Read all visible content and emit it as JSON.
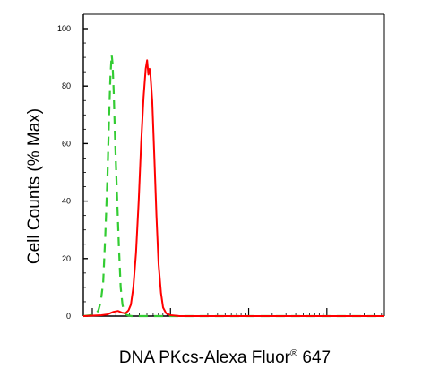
{
  "chart_data": {
    "type": "line",
    "title": "",
    "xlabel": "DNA PKcs-Alexa Fluor",
    "xlabel_superscript": "®",
    "xlabel_suffix": " 647",
    "ylabel": "Cell Counts (% Max)",
    "xscale": "log",
    "xlim": [
      0,
      1000
    ],
    "ylim": [
      0,
      100
    ],
    "yticks": [
      "0",
      "20",
      "40",
      "60",
      "80",
      "100"
    ],
    "grid": false,
    "legend": "none",
    "series": [
      {
        "color": "#33cc33",
        "style": "dashed",
        "points": [
          [
            0,
            0
          ],
          [
            40,
            0.5
          ],
          [
            50,
            2
          ],
          [
            58,
            5
          ],
          [
            66,
            12
          ],
          [
            73,
            28
          ],
          [
            80,
            48
          ],
          [
            85,
            68
          ],
          [
            90,
            83
          ],
          [
            94,
            91
          ],
          [
            97,
            88
          ],
          [
            101,
            78
          ],
          [
            106,
            60
          ],
          [
            112,
            42
          ],
          [
            118,
            25
          ],
          [
            124,
            10
          ],
          [
            130,
            4
          ],
          [
            137,
            1
          ],
          [
            146,
            0.3
          ],
          [
            160,
            0
          ],
          [
            1000,
            0
          ]
        ]
      },
      {
        "color": "#ff0000",
        "style": "solid",
        "points": [
          [
            0,
            0
          ],
          [
            60,
            0.3
          ],
          [
            80,
            0.6
          ],
          [
            100,
            1.5
          ],
          [
            115,
            1.8
          ],
          [
            128,
            1.2
          ],
          [
            140,
            1
          ],
          [
            150,
            2
          ],
          [
            158,
            4
          ],
          [
            166,
            10
          ],
          [
            175,
            22
          ],
          [
            184,
            40
          ],
          [
            192,
            60
          ],
          [
            200,
            76
          ],
          [
            207,
            86
          ],
          [
            212,
            89
          ],
          [
            216,
            84
          ],
          [
            220,
            86
          ],
          [
            223,
            84
          ],
          [
            229,
            75
          ],
          [
            236,
            55
          ],
          [
            243,
            35
          ],
          [
            250,
            18
          ],
          [
            258,
            8
          ],
          [
            265,
            3
          ],
          [
            275,
            1
          ],
          [
            290,
            0.3
          ],
          [
            320,
            0
          ],
          [
            1000,
            0
          ]
        ]
      }
    ]
  }
}
